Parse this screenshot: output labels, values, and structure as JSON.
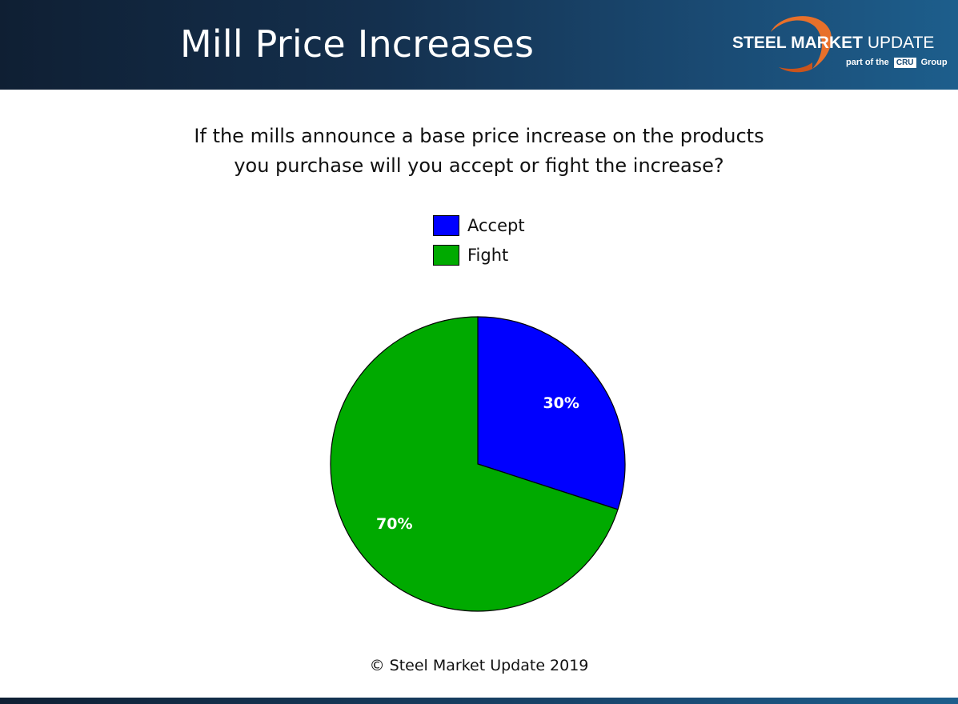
{
  "header": {
    "title": "Mill Price Increases",
    "logo": {
      "brand_bold": "STEEL MARKET",
      "brand_light": "UPDATE",
      "sub_prefix": "part of the",
      "sub_mark": "CRU",
      "sub_suffix": "Group"
    }
  },
  "chart_data": {
    "type": "pie",
    "title": "If the mills announce a base price increase on the products you purchase will you accept or fight the increase?",
    "title_lines": [
      "If the mills announce a base price increase on the products",
      "you purchase will you accept or fight the increase?"
    ],
    "categories": [
      "Accept",
      "Fight"
    ],
    "values": [
      30,
      70
    ],
    "data_labels": [
      "30%",
      "70%"
    ],
    "colors": [
      "#0000ff",
      "#00aa00"
    ],
    "legend_position": "top"
  },
  "footer": {
    "copyright": "© Steel Market Update 2019"
  }
}
